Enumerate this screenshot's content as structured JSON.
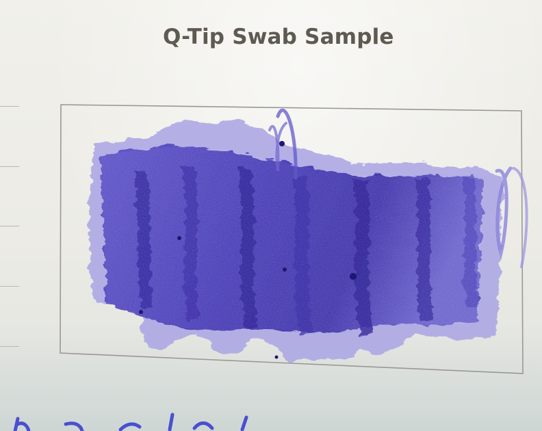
{
  "sample": {
    "title": "Q-Tip Swab Sample"
  },
  "colors": {
    "paper": "#ecebe5",
    "title_text": "#5e5a52",
    "box_border": "#9a9893",
    "ink_dark": "#3d2fa8",
    "ink_mid": "#5648c4",
    "ink_light": "#7f77d6",
    "ink_wash": "#a7a2e3"
  },
  "icons": [
    "ink-swab"
  ]
}
